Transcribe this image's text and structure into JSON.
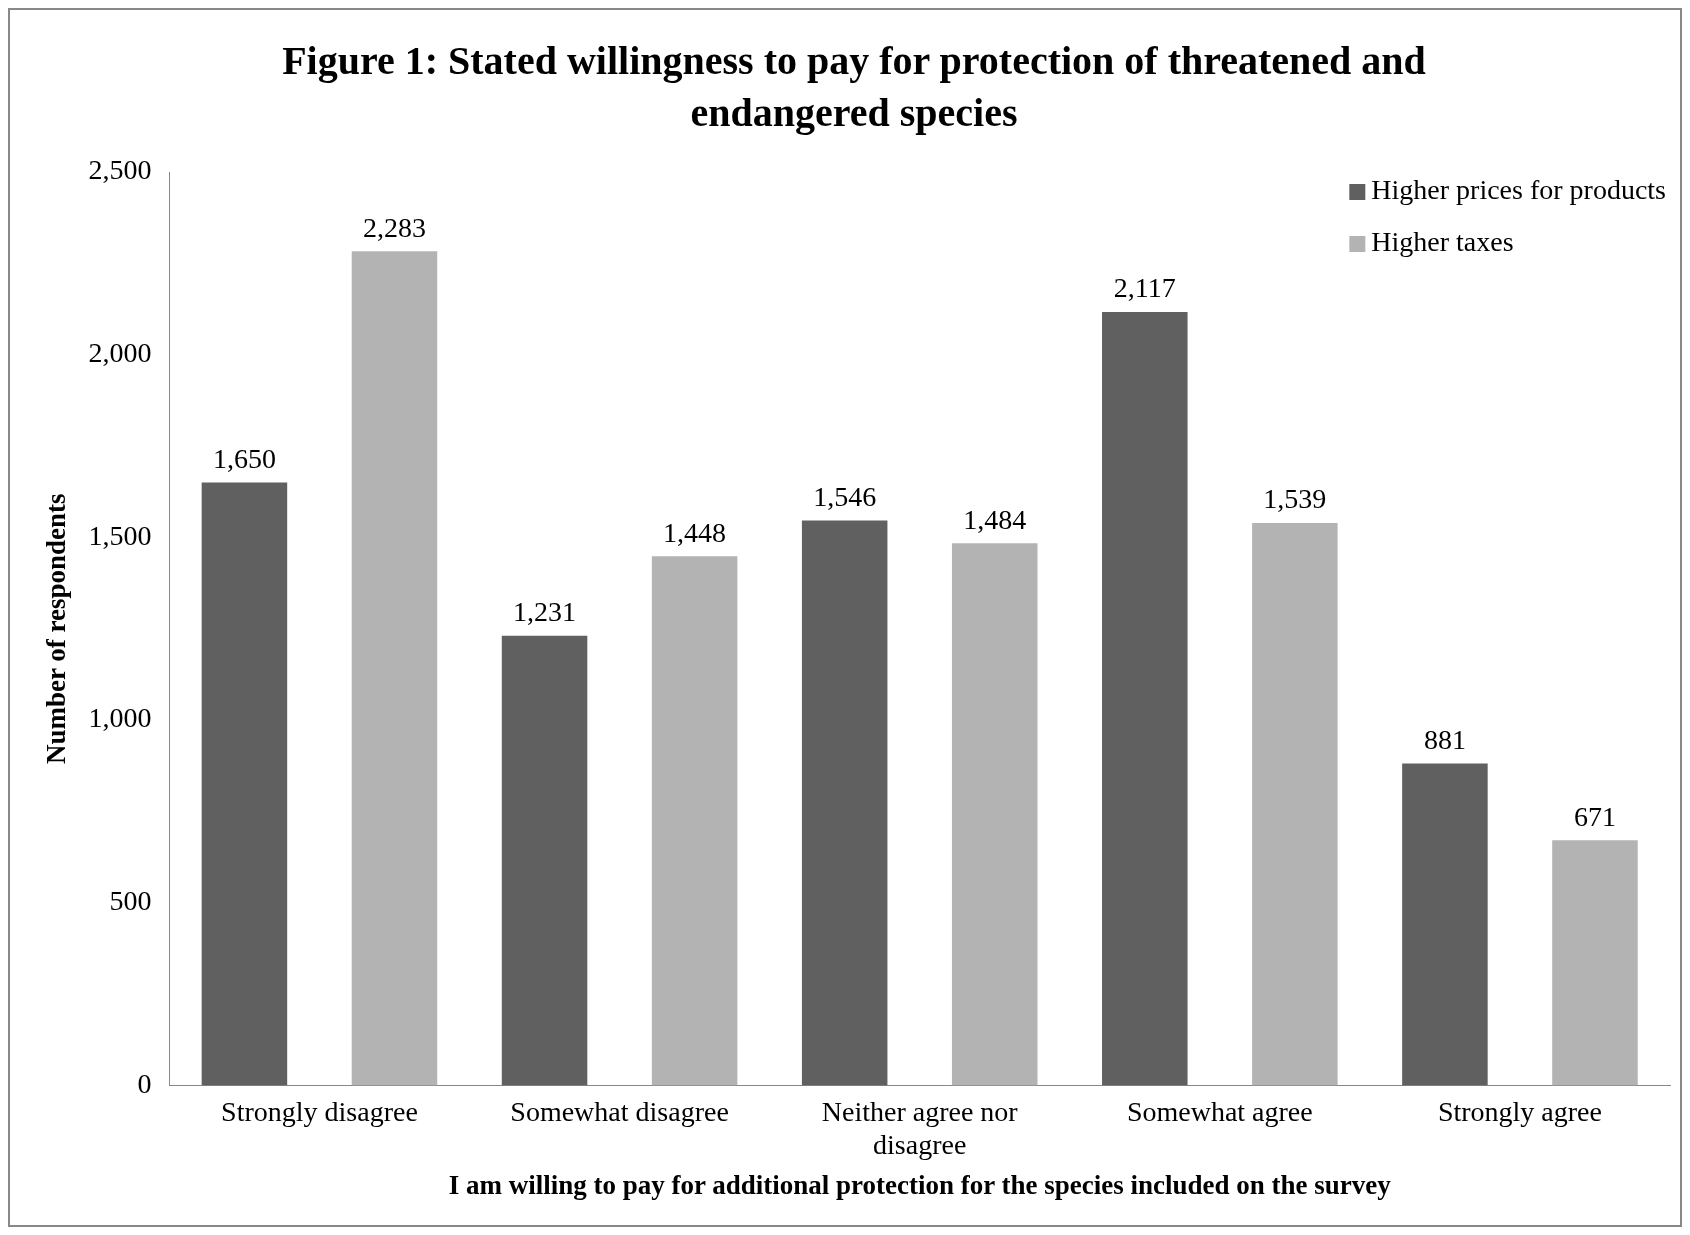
{
  "chart_data": {
    "type": "bar",
    "title": "Figure 1: Stated willingness to pay for protection of threatened and endangered species",
    "xlabel": "I am willing to pay for additional protection for the species included on the survey",
    "ylabel": "Number of respondents",
    "categories": [
      "Strongly disagree",
      "Somewhat disagree",
      "Neither agree nor disagree",
      "Somewhat agree",
      "Strongly agree"
    ],
    "series": [
      {
        "name": "Higher prices for products",
        "color": "#606060",
        "values": [
          1650,
          1231,
          1546,
          2117,
          881
        ],
        "value_labels": [
          "1,650",
          "1,231",
          "1,546",
          "2,117",
          "881"
        ]
      },
      {
        "name": "Higher taxes",
        "color": "#b3b3b3",
        "values": [
          2283,
          1448,
          1484,
          1539,
          671
        ],
        "value_labels": [
          "2,283",
          "1,448",
          "1,484",
          "1,539",
          "671"
        ]
      }
    ],
    "ylim": [
      0,
      2500
    ],
    "yticks": [
      0,
      500,
      {
        "value": 1000,
        "label": "1,000"
      },
      {
        "value": 1500,
        "label": "1,500"
      },
      {
        "value": 2000,
        "label": "2,000"
      },
      {
        "value": 2500,
        "label": "2,500"
      }
    ],
    "grid": false,
    "legend": "top right"
  }
}
